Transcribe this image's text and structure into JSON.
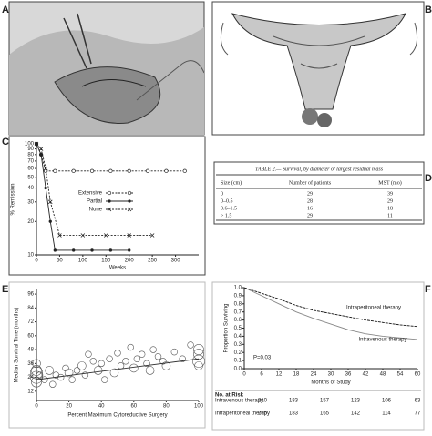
{
  "panel_labels": [
    "A",
    "B",
    "C",
    "D",
    "E",
    "F"
  ],
  "chart_data": [
    {
      "type": "line",
      "ylabel": "% Remission",
      "xlabel": "Weeks",
      "ylog": true,
      "ylim": [
        10,
        100
      ],
      "yticks": [
        10,
        20,
        30,
        40,
        50,
        60,
        70,
        80,
        90,
        100
      ],
      "xlim": [
        0,
        350
      ],
      "xticks": [
        0,
        50,
        100,
        150,
        200,
        250,
        300
      ],
      "legend": "right",
      "series": [
        {
          "name": "Extensive",
          "color": "#222",
          "dash": true,
          "marker": "circle",
          "x": [
            0,
            10,
            20,
            40,
            80,
            120,
            160,
            200,
            240,
            280,
            320
          ],
          "values": [
            100,
            80,
            57,
            57,
            57,
            57,
            57,
            57,
            57,
            57,
            57
          ]
        },
        {
          "name": "Partial",
          "color": "#222",
          "dash": false,
          "marker": "dot",
          "x": [
            0,
            10,
            20,
            30,
            40,
            80,
            120,
            160,
            200
          ],
          "values": [
            100,
            80,
            40,
            20,
            11,
            11,
            11,
            11,
            11
          ]
        },
        {
          "name": "None",
          "color": "#222",
          "dash": true,
          "marker": "x",
          "x": [
            0,
            10,
            20,
            30,
            50,
            100,
            150,
            200,
            250
          ],
          "values": [
            100,
            90,
            60,
            30,
            15,
            15,
            15,
            15,
            15
          ]
        }
      ]
    },
    {
      "type": "scatter",
      "ylabel": "Median Survival Time (months)",
      "xlabel": "Percent Maximum Cytoreductive Surgery",
      "ylim": [
        4,
        100
      ],
      "yticks": [
        12,
        24,
        36,
        48,
        60,
        72,
        84,
        96
      ],
      "xlim": [
        0,
        100
      ],
      "xticks": [
        0,
        20,
        40,
        60,
        80,
        100
      ],
      "color": "#555",
      "x": [
        0,
        0,
        0,
        0,
        0,
        2,
        5,
        8,
        10,
        12,
        15,
        18,
        20,
        22,
        25,
        28,
        30,
        32,
        35,
        38,
        40,
        42,
        45,
        48,
        50,
        52,
        55,
        58,
        60,
        62,
        65,
        68,
        70,
        72,
        75,
        78,
        80,
        85,
        90,
        95,
        100,
        100,
        100,
        100
      ],
      "values": [
        24,
        30,
        20,
        36,
        28,
        26,
        22,
        30,
        18,
        26,
        24,
        32,
        28,
        22,
        30,
        34,
        26,
        44,
        38,
        30,
        36,
        22,
        40,
        28,
        45,
        34,
        38,
        50,
        32,
        40,
        44,
        36,
        30,
        48,
        42,
        38,
        34,
        46,
        40,
        52,
        38,
        44,
        48,
        34
      ],
      "sizes": [
        5,
        4,
        4,
        3,
        5,
        2,
        2,
        3,
        2,
        2,
        2,
        2,
        3,
        2,
        2,
        3,
        2,
        2,
        2,
        3,
        2,
        2,
        2,
        3,
        2,
        2,
        2,
        2,
        3,
        2,
        2,
        2,
        3,
        2,
        2,
        2,
        3,
        2,
        2,
        2,
        5,
        4,
        4,
        3
      ],
      "trend": {
        "x": [
          0,
          100
        ],
        "values": [
          22,
          40
        ]
      }
    },
    {
      "type": "survival",
      "ylabel": "Proportion Surviving",
      "xlabel": "Months of Study",
      "ylim": [
        0,
        1
      ],
      "yticks": [
        {
          "value": 0,
          "label": "0.0"
        },
        0.1,
        0.2,
        0.3,
        0.4,
        0.5,
        0.6,
        0.7,
        0.8,
        0.9,
        {
          "value": 1,
          "label": "1.0"
        }
      ],
      "xlim": [
        0,
        60
      ],
      "xticks": [
        0,
        6,
        12,
        18,
        24,
        30,
        36,
        42,
        48,
        54,
        60
      ],
      "x": [
        0,
        6,
        12,
        18,
        24,
        30,
        36,
        42,
        48,
        54,
        60
      ],
      "annotation": "P=0.03",
      "risk_title": "No. at Risk",
      "series": [
        {
          "name": "Intravenous therapy",
          "color": "#888",
          "values": [
            1,
            0.9,
            0.8,
            0.7,
            0.62,
            0.55,
            0.48,
            0.43,
            0.4,
            0.38,
            0.36
          ],
          "at_risk": [
            210,
            183,
            157,
            123,
            106,
            63
          ]
        },
        {
          "name": "Intraperitoneal therapy",
          "color": "#111",
          "values": [
            1,
            0.93,
            0.86,
            0.78,
            0.72,
            0.68,
            0.64,
            0.6,
            0.57,
            0.54,
            0.52
          ],
          "at_risk": [
            205,
            183,
            165,
            142,
            114,
            77
          ]
        }
      ]
    }
  ],
  "table": {
    "caption": "TABLE 2.— Survival, by diameter of largest residual mass",
    "header": [
      "Size (cm)",
      "Number of patients",
      "MST (mo)"
    ],
    "rows": [
      [
        "0",
        "29",
        "39"
      ],
      [
        "0–0.5",
        "28",
        "29"
      ],
      [
        "0.6–1.5",
        "16",
        "18"
      ],
      [
        "> 1.5",
        "29",
        "11"
      ]
    ]
  }
}
